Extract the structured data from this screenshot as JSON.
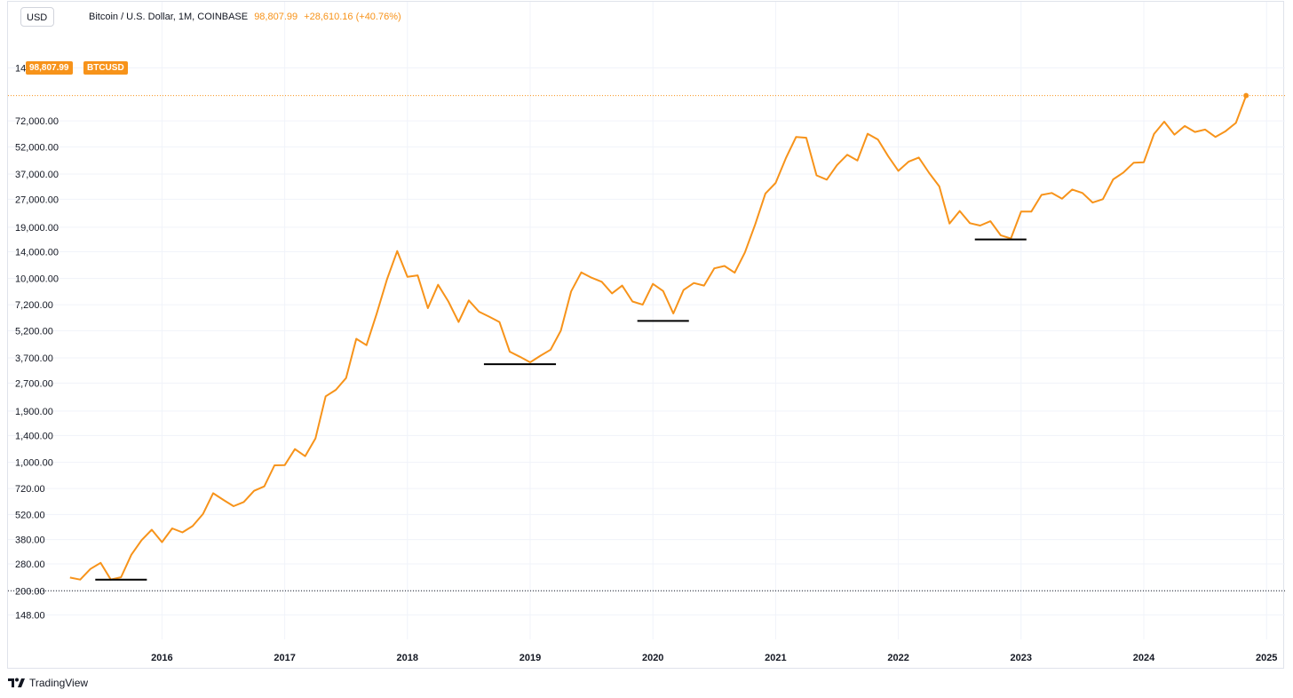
{
  "header": {
    "unit_label": "USD",
    "symbol": "Bitcoin / U.S. Dollar, 1M, COINBASE",
    "last_price": "98,807.99",
    "change": "+28,610.16 (+40.76%)"
  },
  "last_price_tag": {
    "price": "98,807.99",
    "ticker": "BTCUSD"
  },
  "footer": {
    "brand": "TradingView"
  },
  "colors": {
    "series": "#f7931a",
    "grid": "#f0f3fa",
    "support": "#000000",
    "text": "#131722"
  },
  "chart_data": {
    "type": "line",
    "scale": "log",
    "ylim": [
      125,
      160000
    ],
    "y_ticks": [
      {
        "value": 140000,
        "label": "140,000.00"
      },
      {
        "value": 72000,
        "label": "72,000.00"
      },
      {
        "value": 52000,
        "label": "52,000.00"
      },
      {
        "value": 37000,
        "label": "37,000.00"
      },
      {
        "value": 27000,
        "label": "27,000.00"
      },
      {
        "value": 19000,
        "label": "19,000.00"
      },
      {
        "value": 14000,
        "label": "14,000.00"
      },
      {
        "value": 10000,
        "label": "10,000.00"
      },
      {
        "value": 7200,
        "label": "7,200.00"
      },
      {
        "value": 5200,
        "label": "5,200.00"
      },
      {
        "value": 3700,
        "label": "3,700.00"
      },
      {
        "value": 2700,
        "label": "2,700.00"
      },
      {
        "value": 1900,
        "label": "1,900.00"
      },
      {
        "value": 1400,
        "label": "1,400.00"
      },
      {
        "value": 1000,
        "label": "1,000.00"
      },
      {
        "value": 720,
        "label": "720.00"
      },
      {
        "value": 520,
        "label": "520.00"
      },
      {
        "value": 380,
        "label": "380.00"
      },
      {
        "value": 280,
        "label": "280.00"
      },
      {
        "value": 200,
        "label": "200.00"
      },
      {
        "value": 148,
        "label": "148.00"
      }
    ],
    "x_ticks": [
      "2016",
      "2017",
      "2018",
      "2019",
      "2020",
      "2021",
      "2022",
      "2023",
      "2024",
      "2025"
    ],
    "x_start": "2015-04",
    "series": [
      {
        "values": [
          236,
          230,
          263,
          284,
          230,
          237,
          314,
          377,
          430,
          368,
          437,
          416,
          450,
          523,
          679,
          625,
          577,
          608,
          700,
          740,
          963,
          965,
          1180,
          1080,
          1348,
          2286,
          2480,
          2875,
          4700,
          4338,
          6468,
          9900,
          14100,
          10200,
          10400,
          6900,
          9240,
          7500,
          5800,
          7600,
          6600,
          6200,
          5800,
          4000,
          3750,
          3500,
          3800,
          4100,
          5200,
          8500,
          10800,
          10100,
          9600,
          8300,
          9150,
          7500,
          7200,
          9350,
          8550,
          6450,
          8650,
          9450,
          9150,
          11350,
          11700,
          10750,
          13850,
          19700,
          29000,
          33100,
          45100,
          58800,
          58300,
          36400,
          34500,
          41400,
          47100,
          43800,
          61300,
          57000,
          46300,
          38500,
          43200,
          45500,
          37600,
          31700,
          19900,
          23300,
          20000,
          19400,
          20500,
          17200,
          16500,
          23100,
          23100,
          28500,
          29200,
          27200,
          30500,
          29200,
          25900,
          27000,
          34600,
          37700,
          42600,
          42900,
          61100,
          71300,
          60600,
          67500,
          62700,
          64600,
          58900,
          63300,
          70200,
          98807.99
        ]
      }
    ],
    "support_lines": [
      {
        "start": "2015-07",
        "end": "2015-11",
        "value": 230
      },
      {
        "start": "2018-09",
        "end": "2019-03",
        "value": 3420
      },
      {
        "start": "2019-12",
        "end": "2020-04",
        "value": 5880
      },
      {
        "start": "2022-09",
        "end": "2023-01",
        "value": 16300
      }
    ],
    "reference_lines": [
      {
        "value": 98807.99,
        "style": "dotted",
        "color": "#f7931a"
      },
      {
        "value": 200,
        "style": "dotted",
        "color": "#131722"
      }
    ]
  }
}
